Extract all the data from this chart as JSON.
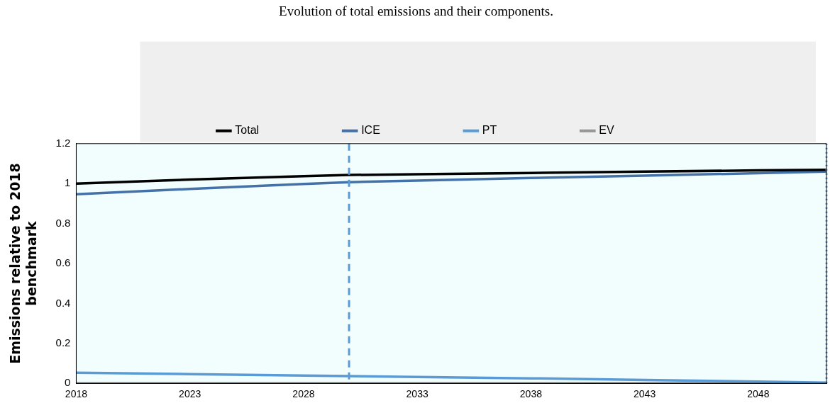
{
  "chart_data": {
    "type": "line",
    "title": "Evolution of total emissions and their components.",
    "ylabel": "Emissions relative to 2018 benchmark",
    "x": [
      2018,
      2023,
      2028,
      2030,
      2033,
      2038,
      2043,
      2048,
      2051
    ],
    "series": [
      {
        "name": "Total",
        "color": "#000000",
        "values": [
          1.0,
          1.02,
          1.037,
          1.043,
          1.047,
          1.053,
          1.06,
          1.066,
          1.069
        ]
      },
      {
        "name": "ICE",
        "color": "#4472a8",
        "values": [
          0.947,
          0.973,
          0.998,
          1.007,
          1.015,
          1.028,
          1.04,
          1.052,
          1.06
        ]
      },
      {
        "name": "PT",
        "color": "#5b9bd5",
        "values": [
          0.053,
          0.046,
          0.039,
          0.036,
          0.032,
          0.025,
          0.017,
          0.009,
          0.003
        ]
      },
      {
        "name": "EV",
        "color": "#969696",
        "values": [
          0,
          0,
          0,
          0,
          0,
          0,
          0,
          0,
          0
        ]
      }
    ],
    "xlim": [
      2018,
      2051
    ],
    "xticks": [
      2018,
      2023,
      2028,
      2033,
      2038,
      2043,
      2048
    ],
    "ylim": [
      0,
      1.2
    ],
    "yticks": [
      0,
      0.2,
      0.4,
      0.6,
      0.8,
      1,
      1.2
    ],
    "ref_lines": [
      {
        "axis": "x",
        "value": 2030,
        "color": "#5b9bd5",
        "line_style": "dashed"
      },
      {
        "axis": "x",
        "value": 2051,
        "color": "#5b9bd5",
        "line_style": "dotted"
      }
    ],
    "grid": false,
    "legend": "top",
    "marker": "none",
    "line_style": "solid"
  }
}
